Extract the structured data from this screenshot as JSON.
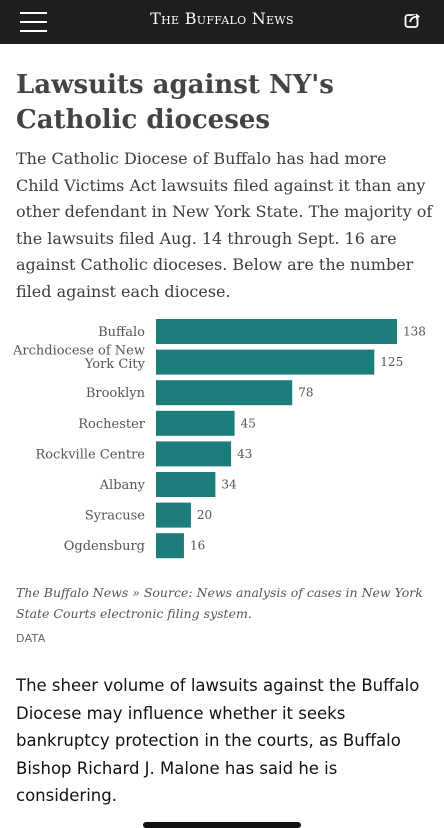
{
  "header": {
    "masthead": "The Buffalo News",
    "menu_icon": "hamburger-menu-icon",
    "share_icon": "share-icon",
    "background_color": "#1e1e1e"
  },
  "article": {
    "headline": "Lawsuits against NY's Catholic dioceses",
    "intro": "The Catholic Diocese of Buffalo has had more Child Victims Act lawsuits filed against it than any other defendant in New York State. The majority of the lawsuits filed Aug. 14 through Sept. 16 are against Catholic dioceses. Below are the number filed against each diocese.",
    "caption": "The Buffalo News » Source: News analysis of cases in New York State Courts electronic filing system.",
    "credit": "DATA",
    "body": "The sheer volume of lawsuits against the Buffalo Diocese may influence whether it seeks bankruptcy protection in the courts, as Buffalo Bishop Richard J. Malone has said he is considering."
  },
  "chart_data": {
    "type": "bar",
    "orientation": "horizontal",
    "categories": [
      "Buffalo",
      "Archdiocese of New York City",
      "Brooklyn",
      "Rochester",
      "Rockville Centre",
      "Albany",
      "Syracuse",
      "Ogdensburg"
    ],
    "category_lines": [
      [
        "Buffalo"
      ],
      [
        "Archdiocese of New",
        "York City"
      ],
      [
        "Brooklyn"
      ],
      [
        "Rochester"
      ],
      [
        "Rockville Centre"
      ],
      [
        "Albany"
      ],
      [
        "Syracuse"
      ],
      [
        "Ogdensburg"
      ]
    ],
    "values": [
      138,
      125,
      78,
      45,
      43,
      34,
      20,
      16
    ],
    "title": "",
    "xlabel": "",
    "ylabel": "",
    "xlim": [
      0,
      138
    ],
    "bar_color": "#1c7d7b",
    "grid": false,
    "legend": "none"
  }
}
